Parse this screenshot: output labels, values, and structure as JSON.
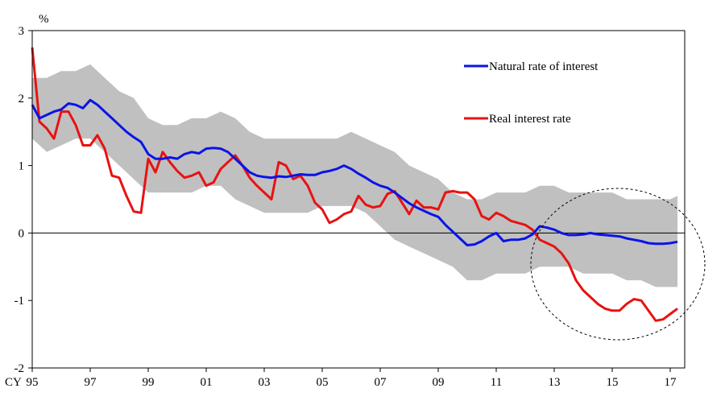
{
  "chart_data": {
    "type": "line",
    "ylabel": "%",
    "x_prefix": "CY",
    "x_tick_labels": [
      "95",
      "97",
      "99",
      "01",
      "03",
      "05",
      "07",
      "09",
      "11",
      "13",
      "15",
      "17"
    ],
    "x_tick_values": [
      1995,
      1997,
      1999,
      2001,
      2003,
      2005,
      2007,
      2009,
      2011,
      2013,
      2015,
      2017
    ],
    "xlim": [
      1995,
      2017.5
    ],
    "ylim": [
      -2,
      3
    ],
    "y_ticks": [
      -2,
      -1,
      0,
      1,
      2,
      3
    ],
    "legend_position": "top-right",
    "colors": {
      "natural": "#0a14e6",
      "real": "#e81212",
      "band": "#c0c0c0"
    },
    "band": {
      "x": [
        1995,
        1995.5,
        1996,
        1996.5,
        1997,
        1997.5,
        1998,
        1998.5,
        1999,
        1999.5,
        2000,
        2000.5,
        2001,
        2001.5,
        2002,
        2002.5,
        2003,
        2003.5,
        2004,
        2004.5,
        2005,
        2005.5,
        2006,
        2006.5,
        2007,
        2007.5,
        2008,
        2008.5,
        2009,
        2009.5,
        2010,
        2010.5,
        2011,
        2011.5,
        2012,
        2012.5,
        2013,
        2013.5,
        2014,
        2014.5,
        2015,
        2015.5,
        2016,
        2016.5,
        2017,
        2017.25
      ],
      "upper": [
        2.3,
        2.3,
        2.4,
        2.4,
        2.5,
        2.3,
        2.1,
        2.0,
        1.7,
        1.6,
        1.6,
        1.7,
        1.7,
        1.8,
        1.7,
        1.5,
        1.4,
        1.4,
        1.4,
        1.4,
        1.4,
        1.4,
        1.5,
        1.4,
        1.3,
        1.2,
        1.0,
        0.9,
        0.8,
        0.6,
        0.5,
        0.5,
        0.6,
        0.6,
        0.6,
        0.7,
        0.7,
        0.6,
        0.6,
        0.6,
        0.6,
        0.5,
        0.5,
        0.5,
        0.5,
        0.55
      ],
      "lower": [
        1.4,
        1.2,
        1.3,
        1.4,
        1.4,
        1.2,
        1.0,
        0.8,
        0.6,
        0.6,
        0.6,
        0.6,
        0.7,
        0.7,
        0.5,
        0.4,
        0.3,
        0.3,
        0.3,
        0.3,
        0.4,
        0.4,
        0.4,
        0.3,
        0.1,
        -0.1,
        -0.2,
        -0.3,
        -0.4,
        -0.5,
        -0.7,
        -0.7,
        -0.6,
        -0.6,
        -0.6,
        -0.5,
        -0.5,
        -0.5,
        -0.6,
        -0.6,
        -0.6,
        -0.7,
        -0.7,
        -0.8,
        -0.8,
        -0.8
      ]
    },
    "series": [
      {
        "name": "Natural rate of interest",
        "x": [
          1995,
          1995.25,
          1995.5,
          1995.75,
          1996,
          1996.25,
          1996.5,
          1996.75,
          1997,
          1997.25,
          1997.5,
          1997.75,
          1998,
          1998.25,
          1998.5,
          1998.75,
          1999,
          1999.25,
          1999.5,
          1999.75,
          2000,
          2000.25,
          2000.5,
          2000.75,
          2001,
          2001.25,
          2001.5,
          2001.75,
          2002,
          2002.25,
          2002.5,
          2002.75,
          2003,
          2003.25,
          2003.5,
          2003.75,
          2004,
          2004.25,
          2004.5,
          2004.75,
          2005,
          2005.25,
          2005.5,
          2005.75,
          2006,
          2006.25,
          2006.5,
          2006.75,
          2007,
          2007.25,
          2007.5,
          2007.75,
          2008,
          2008.25,
          2008.5,
          2008.75,
          2009,
          2009.25,
          2009.5,
          2009.75,
          2010,
          2010.25,
          2010.5,
          2010.75,
          2011,
          2011.25,
          2011.5,
          2011.75,
          2012,
          2012.25,
          2012.5,
          2012.75,
          2013,
          2013.25,
          2013.5,
          2013.75,
          2014,
          2014.25,
          2014.5,
          2014.75,
          2015,
          2015.25,
          2015.5,
          2015.75,
          2016,
          2016.25,
          2016.5,
          2016.75,
          2017,
          2017.25
        ],
        "values": [
          1.9,
          1.7,
          1.75,
          1.8,
          1.83,
          1.92,
          1.9,
          1.85,
          1.97,
          1.9,
          1.8,
          1.7,
          1.6,
          1.5,
          1.42,
          1.35,
          1.17,
          1.1,
          1.1,
          1.12,
          1.1,
          1.17,
          1.2,
          1.18,
          1.25,
          1.26,
          1.25,
          1.2,
          1.1,
          1.0,
          0.9,
          0.85,
          0.83,
          0.82,
          0.84,
          0.83,
          0.85,
          0.87,
          0.86,
          0.86,
          0.9,
          0.92,
          0.95,
          1.0,
          0.95,
          0.88,
          0.82,
          0.75,
          0.7,
          0.67,
          0.6,
          0.52,
          0.44,
          0.38,
          0.33,
          0.28,
          0.24,
          0.12,
          0.02,
          -0.08,
          -0.18,
          -0.17,
          -0.12,
          -0.05,
          0.0,
          -0.12,
          -0.1,
          -0.1,
          -0.08,
          -0.02,
          0.1,
          0.08,
          0.05,
          0.0,
          -0.03,
          -0.03,
          -0.02,
          0.0,
          -0.02,
          -0.03,
          -0.04,
          -0.05,
          -0.08,
          -0.1,
          -0.12,
          -0.15,
          -0.16,
          -0.16,
          -0.15,
          -0.13
        ]
      },
      {
        "name": "Real interest rate",
        "x": [
          1995,
          1995.25,
          1995.5,
          1995.75,
          1996,
          1996.25,
          1996.5,
          1996.75,
          1997,
          1997.25,
          1997.5,
          1997.75,
          1998,
          1998.25,
          1998.5,
          1998.75,
          1999,
          1999.25,
          1999.5,
          1999.75,
          2000,
          2000.25,
          2000.5,
          2000.75,
          2001,
          2001.25,
          2001.5,
          2001.75,
          2002,
          2002.25,
          2002.5,
          2002.75,
          2003,
          2003.25,
          2003.5,
          2003.75,
          2004,
          2004.25,
          2004.5,
          2004.75,
          2005,
          2005.25,
          2005.5,
          2005.75,
          2006,
          2006.25,
          2006.5,
          2006.75,
          2007,
          2007.25,
          2007.5,
          2007.75,
          2008,
          2008.25,
          2008.5,
          2008.75,
          2009,
          2009.25,
          2009.5,
          2009.75,
          2010,
          2010.25,
          2010.5,
          2010.75,
          2011,
          2011.25,
          2011.5,
          2011.75,
          2012,
          2012.25,
          2012.5,
          2012.75,
          2013,
          2013.25,
          2013.5,
          2013.75,
          2014,
          2014.25,
          2014.5,
          2014.75,
          2015,
          2015.25,
          2015.5,
          2015.75,
          2016,
          2016.25,
          2016.5,
          2016.75,
          2017,
          2017.25
        ],
        "values": [
          2.75,
          1.65,
          1.55,
          1.4,
          1.8,
          1.8,
          1.6,
          1.3,
          1.3,
          1.45,
          1.25,
          0.85,
          0.82,
          0.55,
          0.32,
          0.3,
          1.1,
          0.9,
          1.2,
          1.05,
          0.92,
          0.82,
          0.85,
          0.9,
          0.7,
          0.75,
          0.95,
          1.05,
          1.15,
          1.0,
          0.82,
          0.7,
          0.6,
          0.5,
          1.05,
          1.0,
          0.8,
          0.85,
          0.7,
          0.45,
          0.35,
          0.15,
          0.2,
          0.28,
          0.32,
          0.55,
          0.42,
          0.38,
          0.4,
          0.58,
          0.62,
          0.45,
          0.28,
          0.48,
          0.38,
          0.38,
          0.35,
          0.6,
          0.62,
          0.6,
          0.6,
          0.5,
          0.25,
          0.2,
          0.3,
          0.25,
          0.18,
          0.15,
          0.12,
          0.05,
          -0.1,
          -0.15,
          -0.2,
          -0.3,
          -0.45,
          -0.7,
          -0.85,
          -0.95,
          -1.05,
          -1.12,
          -1.15,
          -1.15,
          -1.05,
          -0.98,
          -1.0,
          -1.15,
          -1.3,
          -1.28,
          -1.2,
          -1.12
        ]
      }
    ],
    "annotation": "dashed circle around 2012–2017 region"
  }
}
